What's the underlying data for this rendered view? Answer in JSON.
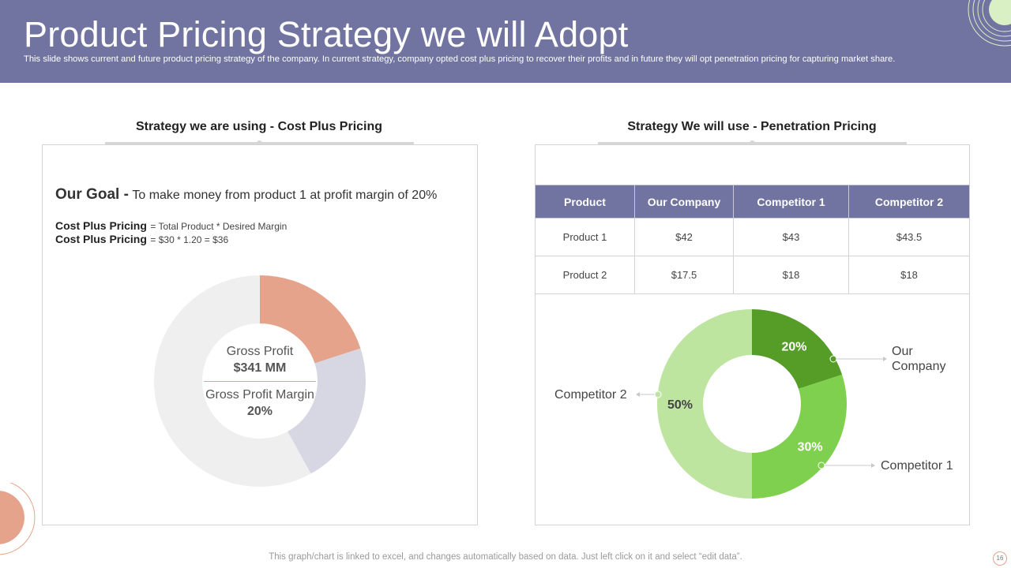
{
  "header": {
    "title": "Product Pricing Strategy we will Adopt",
    "subtitle": "This slide shows current and future product pricing strategy of the company. In current strategy, company opted cost plus pricing to recover their profits and in future they will opt penetration pricing for capturing market share."
  },
  "left_panel": {
    "title": "Strategy we are using - Cost Plus Pricing",
    "goal_label": "Our Goal -",
    "goal_text": "To make money from product 1 at profit margin of 20%",
    "formula1_label": "Cost Plus Pricing",
    "formula1_text": "= Total Product * Desired Margin",
    "formula2_label": "Cost Plus Pricing",
    "formula2_text": "= $30 * 1.20 = $36",
    "center_line1": "Gross Profit",
    "center_line2": "$341 MM",
    "center_line3": "Gross Profit Margin",
    "center_line4": "20%"
  },
  "right_panel": {
    "title": "Strategy We will use - Penetration Pricing",
    "table": {
      "headers": [
        "Product",
        "Our Company",
        "Competitor 1",
        "Competitor 2"
      ],
      "rows": [
        [
          "Product 1",
          "$42",
          "$43",
          "$43.5"
        ],
        [
          "Product 2",
          "$17.5",
          "$18",
          "$18"
        ]
      ]
    }
  },
  "footer": {
    "note": "This graph/chart is linked to excel, and changes automatically based on data. Just left click on it and select “edit data”.",
    "page_number": "16"
  },
  "chart_data": [
    {
      "type": "pie",
      "categories": [
        "",
        "",
        ""
      ],
      "values": [
        20,
        22,
        58
      ],
      "colors": [
        "#e6a38c",
        "#d7d7e3",
        "#efefef"
      ],
      "center_text": [
        "Gross Profit",
        "$341 MM",
        "Gross Profit Margin",
        "20%"
      ]
    },
    {
      "type": "pie",
      "categories": [
        "Our Company",
        "Competitor 1",
        "Competitor 2"
      ],
      "values": [
        20,
        30,
        50
      ],
      "labels": [
        "20%",
        "30%",
        "50%"
      ],
      "colors": [
        "#559d27",
        "#80d050",
        "#bde5a0"
      ]
    }
  ]
}
